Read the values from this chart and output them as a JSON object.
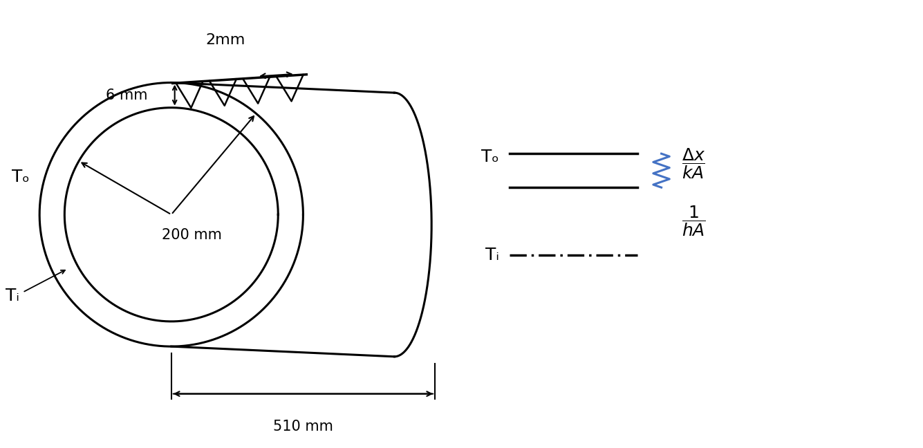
{
  "bg_color": "#ffffff",
  "label_2mm": "2mm",
  "label_6mm": "6 mm",
  "label_200mm": "200 mm",
  "label_510mm": "510 mm",
  "label_To_left": "Tₒ",
  "label_Ti_left": "Tᵢ",
  "legend_To_label": "Tₒ",
  "legend_Ti_label": "Tᵢ",
  "zigzag_color": "#4472C4",
  "black": "#000000",
  "lw_main": 2.2,
  "lw_dim": 1.5,
  "font_size_labels": 17,
  "font_size_dims": 15,
  "font_size_formula": 16
}
